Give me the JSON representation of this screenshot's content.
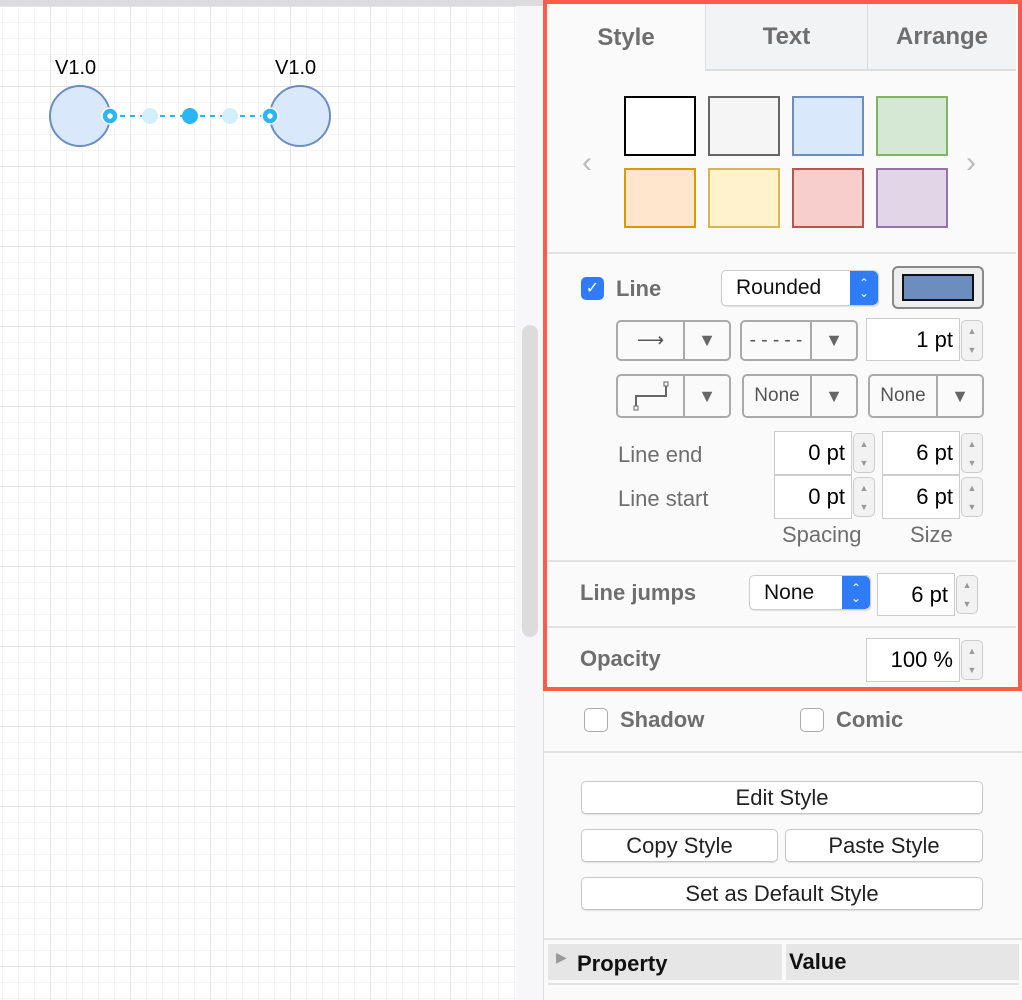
{
  "canvas": {
    "shapes": [
      {
        "label": "V1.0"
      },
      {
        "label": "V1.0"
      }
    ],
    "shape_fill": "#dae8fc",
    "shape_stroke": "#6c8ebf",
    "selection_color": "#29b6f2"
  },
  "tabs": [
    {
      "label": "Style",
      "active": true
    },
    {
      "label": "Text"
    },
    {
      "label": "Arrange"
    }
  ],
  "swatches": [
    {
      "fill": "#ffffff",
      "stroke": "#000000"
    },
    {
      "fill": "#f5f5f5",
      "stroke": "#666666"
    },
    {
      "fill": "#dae8fc",
      "stroke": "#6c8ebf"
    },
    {
      "fill": "#d5e8d4",
      "stroke": "#82b366"
    },
    {
      "fill": "#ffe6cc",
      "stroke": "#d79b00"
    },
    {
      "fill": "#fff2cc",
      "stroke": "#d6b656"
    },
    {
      "fill": "#f8cecc",
      "stroke": "#b85450"
    },
    {
      "fill": "#e1d5e7",
      "stroke": "#9673a6"
    }
  ],
  "line": {
    "label": "Line",
    "checked": true,
    "style": "Rounded",
    "color": "#6c8ebf",
    "width": "1 pt",
    "start_marker": "None",
    "end_marker": "None",
    "pattern": "- - - - -",
    "line_end": {
      "label": "Line end",
      "spacing": "0 pt",
      "size": "6 pt"
    },
    "line_start": {
      "label": "Line start",
      "spacing": "0 pt",
      "size": "6 pt"
    },
    "spacing_label": "Spacing",
    "size_label": "Size"
  },
  "line_jumps": {
    "label": "Line jumps",
    "value": "None",
    "size": "6 pt"
  },
  "opacity": {
    "label": "Opacity",
    "value": "100 %"
  },
  "shadow": {
    "label": "Shadow",
    "checked": false
  },
  "comic": {
    "label": "Comic",
    "checked": false
  },
  "buttons": {
    "edit_style": "Edit Style",
    "copy_style": "Copy Style",
    "paste_style": "Paste Style",
    "set_default": "Set as Default Style"
  },
  "property_table": {
    "col1": "Property",
    "col2": "Value"
  },
  "highlight_color": "#ff5a4e"
}
